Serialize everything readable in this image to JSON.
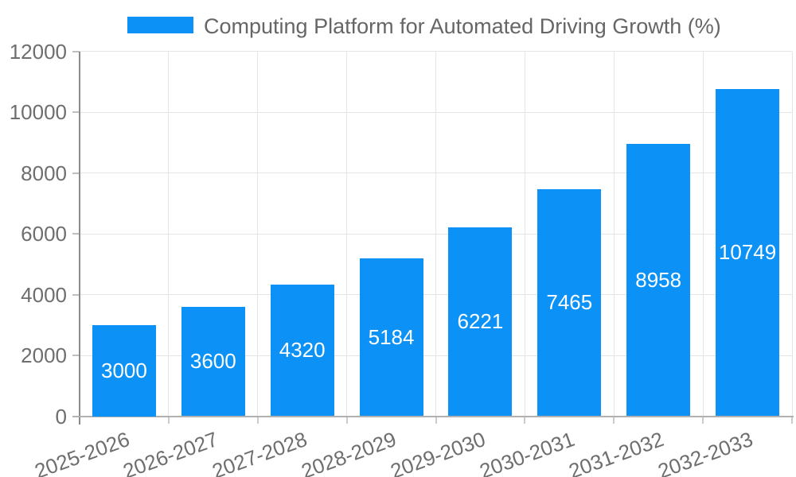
{
  "legend": {
    "label": "Computing Platform for Automated Driving Growth (%)"
  },
  "chart_data": {
    "type": "bar",
    "title": "Computing Platform for Automated Driving Growth (%)",
    "series_name": "Computing Platform for Automated Driving Growth (%)",
    "categories": [
      "2025-2026",
      "2026-2027",
      "2027-2028",
      "2028-2029",
      "2029-2030",
      "2030-2031",
      "2031-2032",
      "2032-2033"
    ],
    "values": [
      3000,
      3600,
      4320,
      5184,
      6221,
      7465,
      8958,
      10749
    ],
    "value_labels": [
      "3000",
      "3600",
      "4320",
      "5184",
      "6221",
      "7465",
      "8958",
      "10749"
    ],
    "xlabel": "",
    "ylabel": "",
    "ylim": [
      0,
      12000
    ],
    "yticks": [
      0,
      2000,
      4000,
      6000,
      8000,
      10000,
      12000
    ],
    "grid": true,
    "legend_position": "top-center",
    "xtick_rotation_deg": -20,
    "value_label_position": "center-inside"
  },
  "colors": {
    "bar": "#0c92f7",
    "bar_value_label": "#ffffff",
    "grid": "#e4e4e4",
    "y_axis_line": "#8a8a8a",
    "x_axis_line": "#b1b1b1",
    "tick_label": "#6e6e6e",
    "legend_text": "#666666",
    "background": "#ffffff"
  }
}
